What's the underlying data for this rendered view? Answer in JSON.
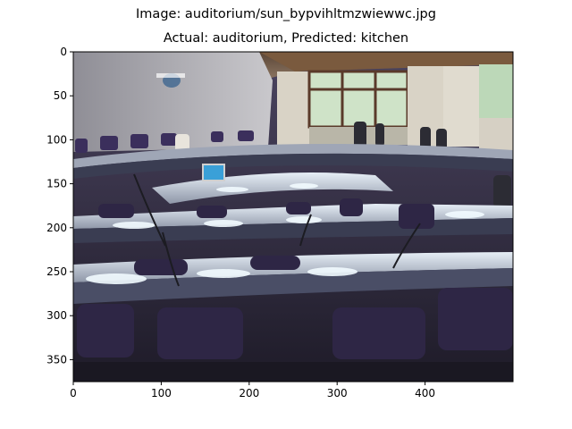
{
  "figure": {
    "suptitle": "Image: auditorium/sun_bypvihltmzwiewwc.jpg",
    "title": "Actual: auditorium, Predicted: kitchen"
  },
  "axes": {
    "x_ticks": [
      0,
      100,
      200,
      300,
      400
    ],
    "y_ticks": [
      0,
      50,
      100,
      150,
      200,
      250,
      300,
      350
    ],
    "x_range": [
      0,
      500
    ],
    "y_range": [
      375,
      0
    ]
  },
  "image": {
    "description_id": "auditorium-photo",
    "colors": {
      "ceiling": "#6e5a4a",
      "wall": "#b9b8bd",
      "curtain": "#d9d3c6",
      "window": "#cfe3c8",
      "desk": "#b8c0cc",
      "desk_shadow": "#3a3d52",
      "chair": "#3b2f5c",
      "carpet": "#5a5070",
      "light": "#f2fbff"
    }
  }
}
